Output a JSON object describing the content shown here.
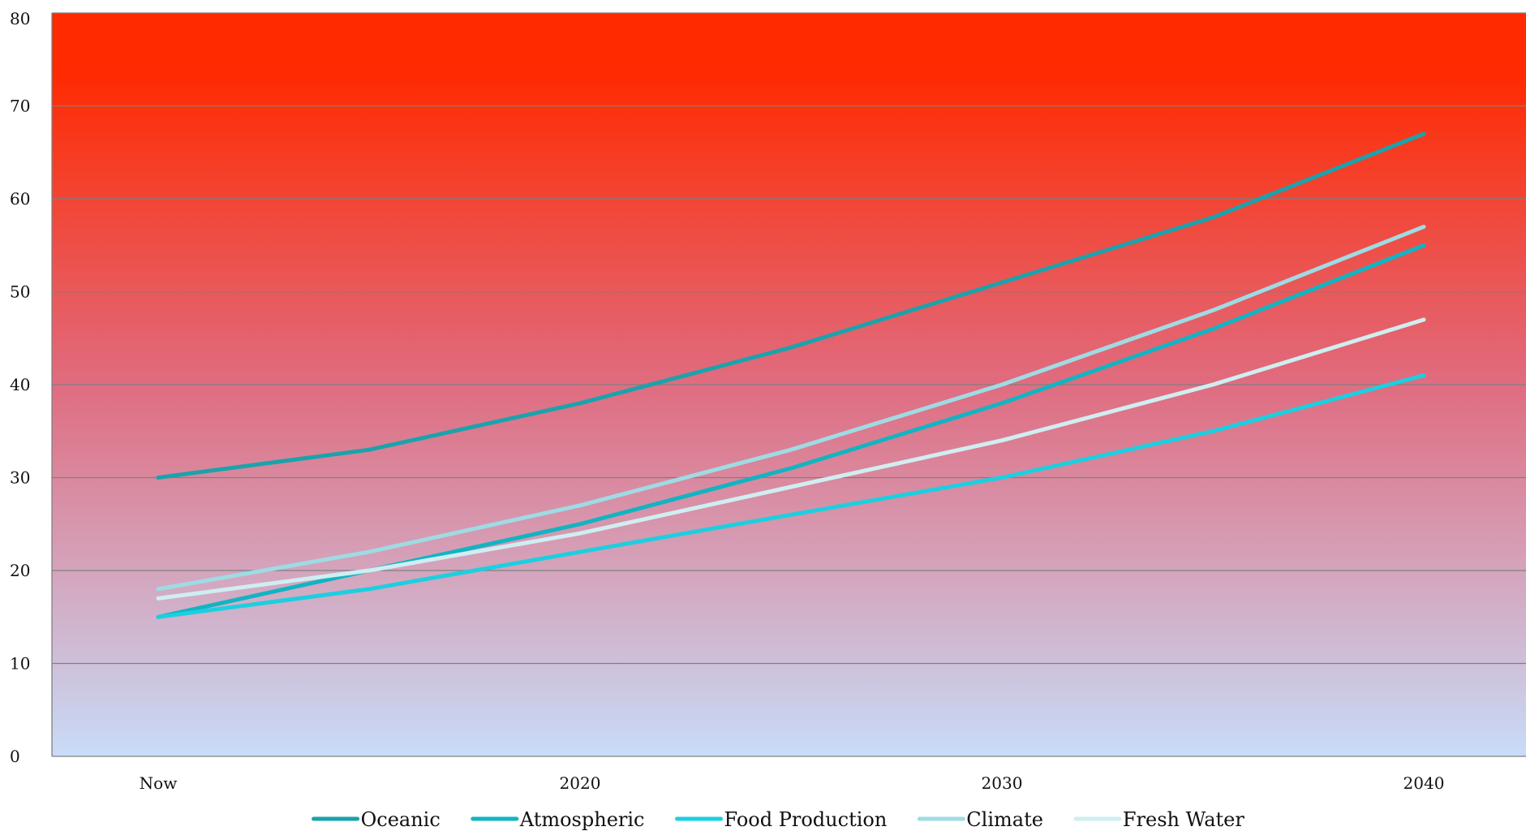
{
  "chart_data": {
    "type": "line",
    "x": [
      "Now",
      "",
      "2020",
      "",
      "2030",
      "",
      "2040"
    ],
    "x_tick_labels": [
      "Now",
      "2020",
      "2030",
      "2040"
    ],
    "ylim": [
      0,
      80
    ],
    "y_ticks": [
      0,
      10,
      20,
      30,
      40,
      50,
      60,
      70,
      80
    ],
    "grid": true,
    "legend_position": "bottom",
    "background": {
      "type": "vertical-gradient",
      "top_color": "#ff2a00",
      "mid_color": "#e06c80",
      "bottom_color": "#c8dcf8"
    },
    "series": [
      {
        "name": "Oceanic",
        "color": "#1aa3ac",
        "values": [
          30,
          33,
          38,
          44,
          51,
          58,
          67
        ]
      },
      {
        "name": "Atmospheric",
        "color": "#12b4c2",
        "values": [
          15,
          20,
          25,
          31,
          38,
          46,
          55
        ]
      },
      {
        "name": "Food Production",
        "color": "#1ccfe0",
        "values": [
          15,
          18,
          22,
          26,
          30,
          35,
          41
        ]
      },
      {
        "name": "Climate",
        "color": "#9fdbe4",
        "values": [
          18,
          22,
          27,
          33,
          40,
          48,
          57
        ]
      },
      {
        "name": "Fresh Water",
        "color": "#cfeef1",
        "values": [
          17,
          20,
          24,
          29,
          34,
          40,
          47
        ]
      }
    ]
  }
}
